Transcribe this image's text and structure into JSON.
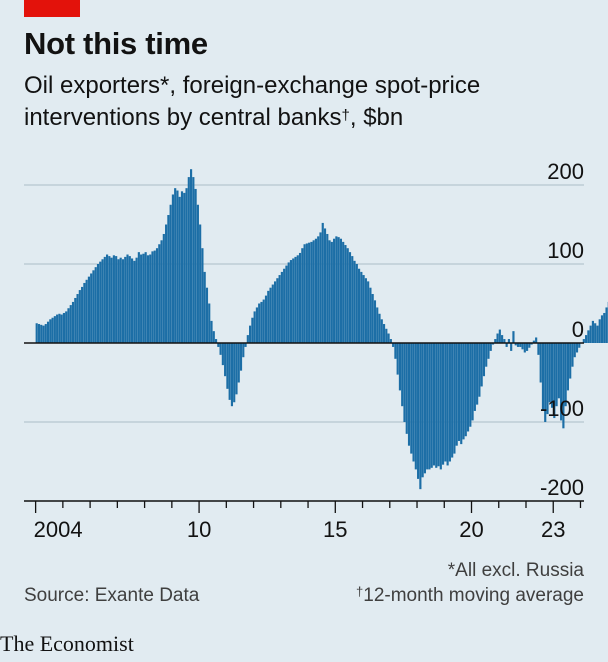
{
  "header": {
    "title": "Not this time",
    "subtitle": "Oil exporters*, foreign-exchange spot-price interventions by central banks",
    "subtitle_mark": "†",
    "subtitle_unit": ", $bn"
  },
  "footer": {
    "source": "Source: Exante Data",
    "note1": "*All excl. Russia",
    "note2_mark": "†",
    "note2": "12-month moving average",
    "brand": "The Economist"
  },
  "colors": {
    "bar": "#1c6ea6",
    "grid": "#b7c6cf",
    "zero": "#121212",
    "accent": "#e3120b"
  },
  "chart_data": {
    "type": "bar",
    "x_start": 2004.0,
    "x_step_months": 1,
    "xlim": [
      2003.5,
      2024.9
    ],
    "ylim": [
      -200,
      220
    ],
    "y_ticks": [
      200,
      100,
      0,
      -100,
      -200
    ],
    "y_tick_labels": [
      "200",
      "100",
      "0",
      "-100",
      "-200"
    ],
    "x_ticks": [
      2004,
      2010,
      2015,
      2020,
      2023
    ],
    "x_tick_labels": [
      "2004",
      "10",
      "15",
      "20",
      "23"
    ],
    "grid": true,
    "values": [
      25,
      24,
      23,
      22,
      24,
      27,
      30,
      32,
      34,
      36,
      37,
      36,
      38,
      40,
      44,
      48,
      52,
      57,
      62,
      67,
      71,
      76,
      80,
      84,
      88,
      92,
      96,
      100,
      103,
      106,
      109,
      112,
      110,
      108,
      111,
      110,
      106,
      108,
      106,
      109,
      112,
      110,
      107,
      104,
      108,
      115,
      112,
      113,
      115,
      111,
      112,
      116,
      117,
      120,
      125,
      130,
      138,
      150,
      162,
      175,
      188,
      196,
      193,
      185,
      192,
      190,
      196,
      210,
      220,
      210,
      195,
      175,
      150,
      120,
      90,
      70,
      50,
      28,
      15,
      5,
      -5,
      -15,
      -28,
      -42,
      -58,
      -72,
      -80,
      -75,
      -65,
      -50,
      -35,
      -18,
      -5,
      10,
      22,
      32,
      40,
      45,
      50,
      52,
      55,
      60,
      66,
      70,
      74,
      78,
      82,
      86,
      90,
      94,
      98,
      102,
      105,
      107,
      109,
      111,
      114,
      120,
      125,
      126,
      127,
      128,
      130,
      132,
      135,
      140,
      152,
      145,
      138,
      130,
      128,
      132,
      135,
      134,
      132,
      128,
      124,
      120,
      115,
      110,
      104,
      100,
      94,
      90,
      86,
      82,
      78,
      70,
      62,
      54,
      45,
      37,
      30,
      24,
      18,
      12,
      5,
      -5,
      -20,
      -40,
      -60,
      -80,
      -100,
      -115,
      -130,
      -140,
      -150,
      -160,
      -172,
      -185,
      -170,
      -165,
      -160,
      -160,
      -158,
      -155,
      -158,
      -156,
      -160,
      -154,
      -150,
      -155,
      -150,
      -145,
      -140,
      -130,
      -124,
      -128,
      -122,
      -118,
      -112,
      -106,
      -98,
      -86,
      -78,
      -68,
      -55,
      -42,
      -30,
      -20,
      -10,
      -2,
      5,
      12,
      17,
      10,
      5,
      -5,
      5,
      -10,
      15,
      -3,
      -5,
      -5,
      -8,
      -12,
      -10,
      -6,
      -2,
      3,
      7,
      -15,
      -50,
      -85,
      -100,
      -90,
      -75,
      -82,
      -95,
      -80,
      -70,
      -98,
      -108,
      -80,
      -60,
      -45,
      -30,
      -18,
      -12,
      -6,
      0,
      5,
      10,
      16,
      22,
      28,
      25,
      22,
      30,
      35,
      38,
      45,
      52,
      58
    ]
  }
}
